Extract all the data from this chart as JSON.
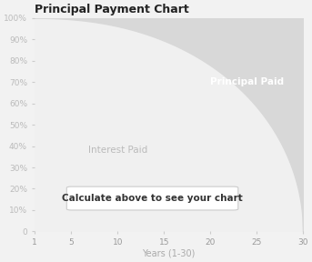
{
  "title": "Principal Payment Chart",
  "xlabel": "Years (1-30)",
  "ylabel": "",
  "xlim": [
    1,
    30
  ],
  "ylim": [
    0,
    100
  ],
  "xticks": [
    1,
    5,
    10,
    15,
    20,
    25,
    30
  ],
  "yticks": [
    0,
    10,
    20,
    30,
    40,
    50,
    60,
    70,
    80,
    90,
    100
  ],
  "ytick_labels": [
    "0",
    "10%",
    "20%",
    "30%",
    "40%",
    "50%",
    "60%",
    "70%",
    "80%",
    "90%",
    "100%"
  ],
  "interest_label": "Interest Paid",
  "principal_label": "Principal Paid",
  "overlay_text": "Calculate above to see your chart",
  "bg_color": "#f2f2f2",
  "plot_bg_color": "#ffffff",
  "interest_color": "#f0f0f0",
  "principal_color": "#d8d8d8",
  "title_fontsize": 9,
  "label_fontsize": 7,
  "tick_fontsize": 6.5,
  "interest_label_color": "#bbbbbb",
  "principal_label_color": "#ffffff",
  "xlabel_color": "#aaaaaa",
  "overlay_text_color": "#333333",
  "n_points": 500,
  "curve_exponent": 2.2
}
